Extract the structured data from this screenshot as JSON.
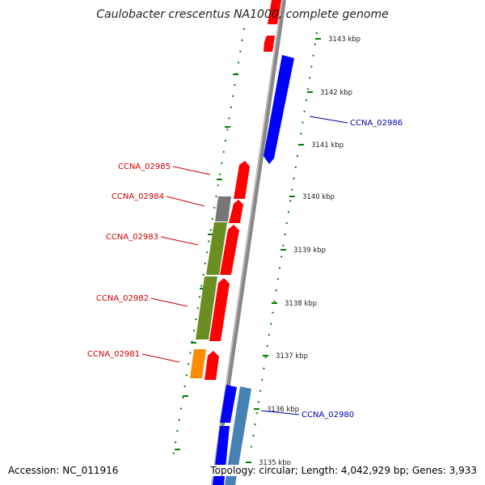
{
  "title": "Caulobacter crescentus NA1000, complete genome",
  "accession": "Accession: NC_011916",
  "topology": "Topology: circular; Length: 4,042,929 bp; Genes: 3,933",
  "colors": {
    "forward_cds": "#ff0000",
    "reverse_cds": "#0000ff",
    "reverse_cds_light": "#4682b4",
    "gc_bar": "#6b8e23",
    "gc_bar_grey": "#777777",
    "gc_bar_orange": "#ff8c00",
    "backbone": "#888888",
    "tick": "#008000",
    "forward_label": "#cc0000",
    "reverse_label": "#0000aa"
  },
  "ticks": [
    {
      "label": "3143 kbp"
    },
    {
      "label": "3142 kbp"
    },
    {
      "label": "3141 kbp"
    },
    {
      "label": "3140 kbp"
    },
    {
      "label": "3139 kbp"
    },
    {
      "label": "3138 kbp"
    },
    {
      "label": "3137 kbp"
    },
    {
      "label": "3136 kbp"
    },
    {
      "label": "3135 kbp"
    }
  ],
  "genes_forward": [
    {
      "name": "CCNA_02985"
    },
    {
      "name": "CCNA_02984"
    },
    {
      "name": "CCNA_02983"
    },
    {
      "name": "CCNA_02982"
    },
    {
      "name": "CCNA_02981"
    }
  ],
  "genes_reverse": [
    {
      "name": "CCNA_02986"
    },
    {
      "name": "CCNA_02980"
    }
  ]
}
